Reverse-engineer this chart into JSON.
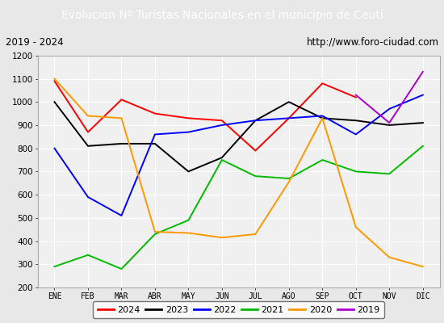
{
  "title": "Evolucion Nº Turistas Nacionales en el municipio de Ceutí",
  "subtitle_left": "2019 - 2024",
  "subtitle_right": "http://www.foro-ciudad.com",
  "title_bg_color": "#4472c4",
  "title_text_color": "#ffffff",
  "months": [
    "ENE",
    "FEB",
    "MAR",
    "ABR",
    "MAY",
    "JUN",
    "JUL",
    "AGO",
    "SEP",
    "OCT",
    "NOV",
    "DIC"
  ],
  "ylim": [
    200,
    1200
  ],
  "yticks": [
    200,
    300,
    400,
    500,
    600,
    700,
    800,
    900,
    1000,
    1100,
    1200
  ],
  "series": {
    "2024": {
      "color": "#ff0000",
      "data": [
        1090,
        870,
        1010,
        950,
        930,
        920,
        790,
        930,
        1080,
        1020,
        null,
        null
      ]
    },
    "2023": {
      "color": "#000000",
      "data": [
        1000,
        810,
        820,
        820,
        700,
        760,
        920,
        1000,
        930,
        920,
        900,
        910
      ]
    },
    "2022": {
      "color": "#0000ff",
      "data": [
        800,
        590,
        510,
        860,
        870,
        900,
        920,
        930,
        940,
        860,
        970,
        1030
      ]
    },
    "2021": {
      "color": "#00bb00",
      "data": [
        290,
        340,
        280,
        430,
        490,
        750,
        680,
        670,
        750,
        700,
        690,
        810
      ]
    },
    "2020": {
      "color": "#ff9900",
      "data": [
        1100,
        940,
        930,
        440,
        435,
        415,
        430,
        655,
        930,
        460,
        330,
        290
      ]
    },
    "2019": {
      "color": "#aa00cc",
      "data": [
        null,
        null,
        null,
        null,
        null,
        null,
        null,
        null,
        null,
        1030,
        910,
        1130
      ]
    }
  },
  "legend_order": [
    "2024",
    "2023",
    "2022",
    "2021",
    "2020",
    "2019"
  ],
  "bg_color": "#e8e8e8",
  "plot_bg_color": "#f0f0f0",
  "grid_color": "#ffffff",
  "border_color": "#aaaaaa"
}
